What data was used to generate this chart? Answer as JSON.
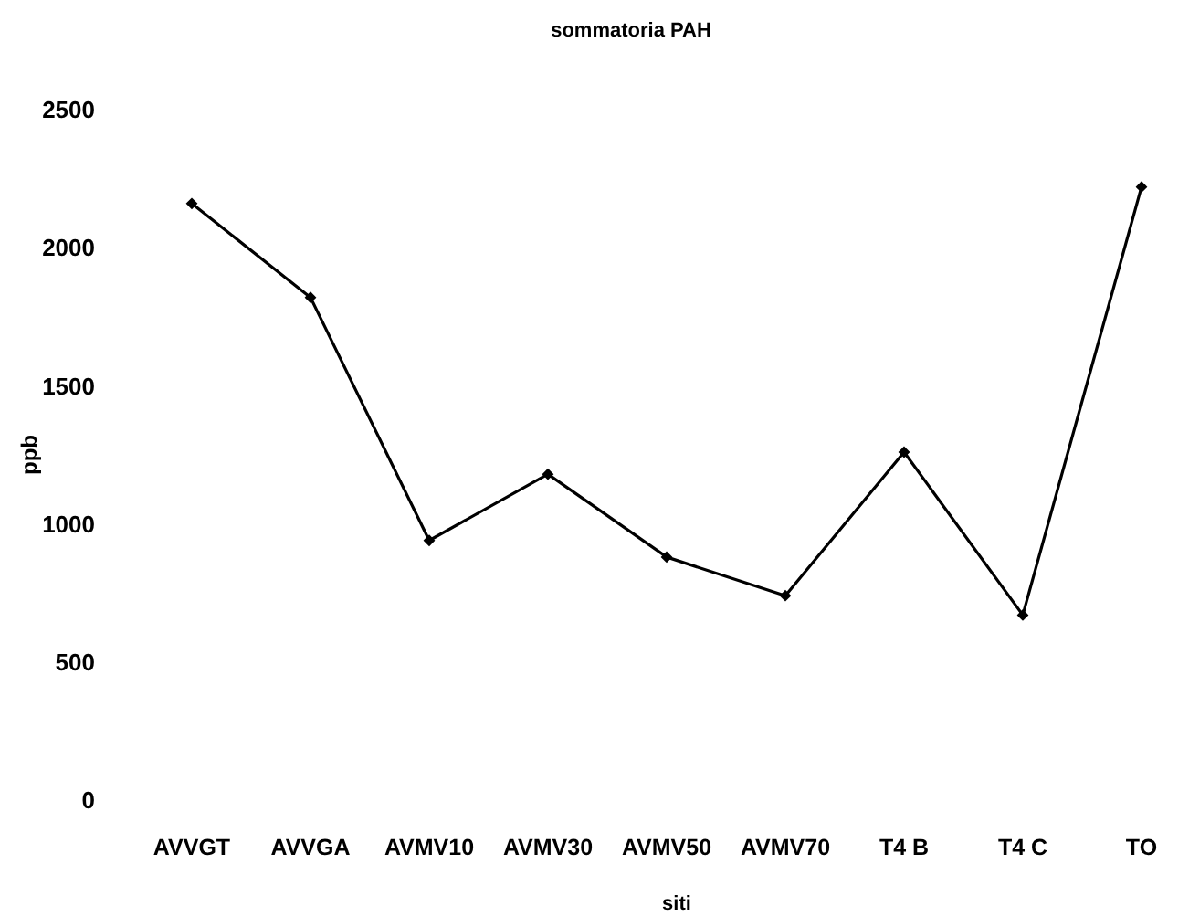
{
  "chart_data": {
    "type": "line",
    "title": "sommatoria PAH",
    "xlabel": "siti",
    "ylabel": "ppb",
    "categories": [
      "AVVGT",
      "AVVGA",
      "AVMV10",
      "AVMV30",
      "AVMV50",
      "AVMV70",
      "T4 B",
      "T4 C",
      "TO"
    ],
    "series": [
      {
        "color": "#000000",
        "values": [
          2160,
          1820,
          940,
          1180,
          880,
          740,
          1260,
          670,
          2220
        ]
      }
    ],
    "ylim": [
      0,
      2500
    ],
    "yticks": [
      0,
      500,
      1000,
      1500,
      2000,
      2500
    ],
    "grid": false,
    "marker": "diamond",
    "line_style": "solid"
  }
}
